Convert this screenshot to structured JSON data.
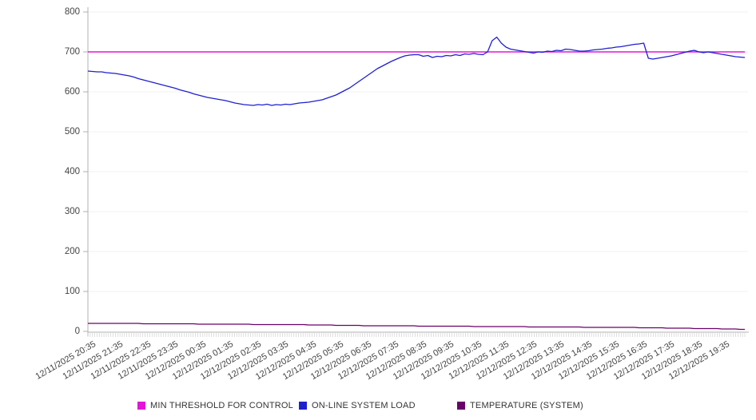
{
  "chart_data": {
    "type": "line",
    "title": "",
    "xlabel": "",
    "ylabel": "",
    "ylim": [
      0,
      800
    ],
    "yticks": [
      0,
      100,
      200,
      300,
      400,
      500,
      600,
      700,
      800
    ],
    "grid": true,
    "legend_position": "bottom",
    "x_interval_minutes": 10,
    "x_tick_labels": [
      "12/11/2025 20:35",
      "12/11/2025 21:35",
      "12/11/2025 22:35",
      "12/11/2025 23:35",
      "12/12/2025 00:35",
      "12/12/2025 01:35",
      "12/12/2025 02:35",
      "12/12/2025 03:35",
      "12/12/2025 04:35",
      "12/12/2025 05:35",
      "12/12/2025 06:35",
      "12/12/2025 07:35",
      "12/12/2025 08:35",
      "12/12/2025 09:35",
      "12/12/2025 10:35",
      "12/12/2025 11:35",
      "12/12/2025 12:35",
      "12/12/2025 13:35",
      "12/12/2025 14:35",
      "12/12/2025 15:35",
      "12/12/2025 16:35",
      "12/12/2025 17:35",
      "12/12/2025 18:35",
      "12/12/2025 19:35"
    ],
    "series": [
      {
        "name": "MIN THRESHOLD FOR CONTROL",
        "color": "#e316d6",
        "style": "threshold",
        "value": 700
      },
      {
        "name": "ON-LINE SYSTEM LOAD",
        "color": "#2020cf",
        "style": "line",
        "values": [
          652,
          651,
          650,
          650,
          648,
          647,
          646,
          644,
          642,
          640,
          637,
          633,
          630,
          627,
          624,
          621,
          618,
          615,
          612,
          609,
          605,
          602,
          599,
          595,
          592,
          589,
          586,
          584,
          582,
          580,
          578,
          575,
          572,
          570,
          568,
          567,
          566,
          568,
          567,
          569,
          566,
          568,
          567,
          569,
          568,
          570,
          572,
          573,
          574,
          576,
          578,
          580,
          584,
          588,
          592,
          598,
          604,
          610,
          618,
          626,
          634,
          642,
          650,
          658,
          664,
          670,
          676,
          681,
          686,
          690,
          692,
          693,
          693,
          689,
          691,
          686,
          689,
          688,
          691,
          690,
          693,
          691,
          695,
          694,
          696,
          694,
          693,
          700,
          728,
          737,
          722,
          712,
          707,
          705,
          703,
          701,
          699,
          697,
          700,
          699,
          702,
          701,
          704,
          703,
          707,
          706,
          704,
          702,
          702,
          703,
          705,
          706,
          707,
          709,
          710,
          712,
          713,
          715,
          717,
          719,
          720,
          722,
          684,
          682,
          684,
          686,
          688,
          690,
          693,
          696,
          699,
          702,
          704,
          700,
          698,
          700,
          698,
          696,
          694,
          692,
          690,
          688,
          687,
          686
        ]
      },
      {
        "name": "TEMPERATURE (SYSTEM)",
        "color": "#6b006b",
        "style": "line",
        "values": [
          20,
          20,
          20,
          20,
          20,
          20,
          20,
          20,
          20,
          20,
          20,
          20,
          19,
          19,
          19,
          19,
          19,
          19,
          19,
          19,
          19,
          19,
          19,
          19,
          18,
          18,
          18,
          18,
          18,
          18,
          18,
          18,
          18,
          18,
          18,
          18,
          17,
          17,
          17,
          17,
          17,
          17,
          17,
          17,
          17,
          17,
          17,
          17,
          16,
          16,
          16,
          16,
          16,
          16,
          15,
          15,
          15,
          15,
          15,
          15,
          14,
          14,
          14,
          14,
          14,
          14,
          14,
          14,
          14,
          14,
          14,
          14,
          13,
          13,
          13,
          13,
          13,
          13,
          13,
          13,
          13,
          13,
          13,
          13,
          12,
          12,
          12,
          12,
          12,
          12,
          12,
          12,
          12,
          12,
          12,
          12,
          11,
          11,
          11,
          11,
          11,
          11,
          11,
          11,
          11,
          11,
          11,
          11,
          10,
          10,
          10,
          10,
          10,
          10,
          10,
          10,
          10,
          10,
          10,
          10,
          9,
          9,
          9,
          9,
          9,
          9,
          8,
          8,
          8,
          8,
          8,
          8,
          7,
          7,
          7,
          7,
          7,
          7,
          6,
          6,
          6,
          6,
          5,
          5
        ]
      }
    ],
    "colors": {
      "gridline": "#f0f0f0",
      "axis": "#b0b0b0",
      "minor_tick": "#c9c9c9",
      "tick_text": "#444444",
      "legend_text": "#333333"
    }
  }
}
